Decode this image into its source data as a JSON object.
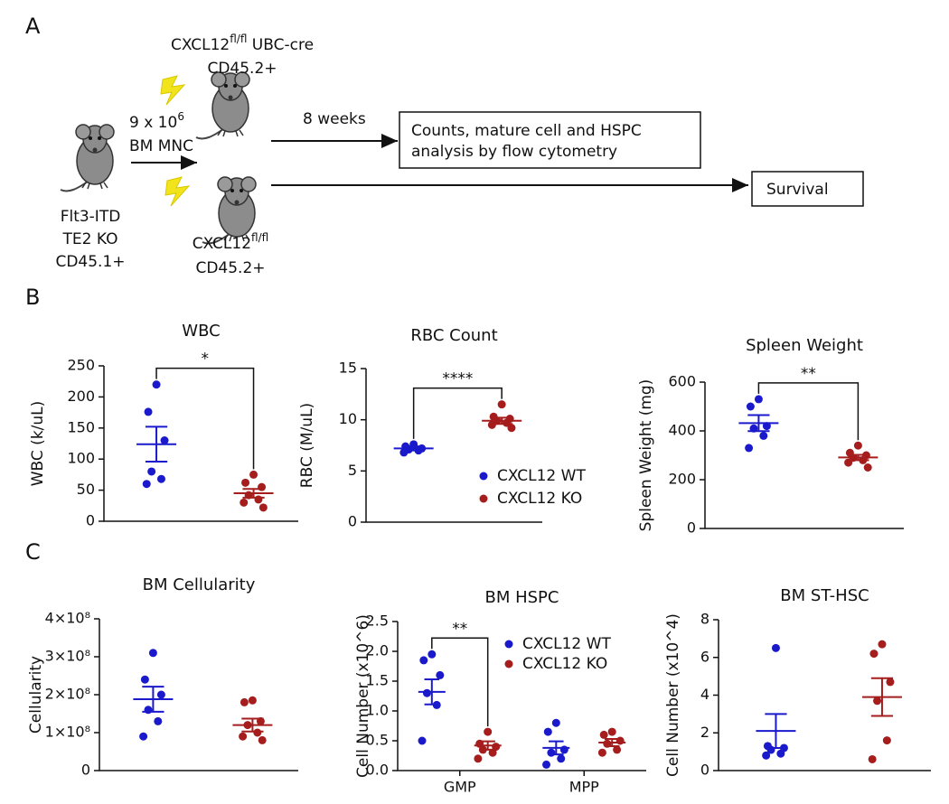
{
  "panel_labels": [
    "A",
    "B",
    "C"
  ],
  "diagram": {
    "donor": [
      "Flt3-ITD",
      "TE2 KO",
      "CD45.1+"
    ],
    "dose": {
      "base": "9 x 10",
      "sup": "6"
    },
    "dose_unit": "BM MNC",
    "recipient_cre": {
      "base": "CXCL12",
      "sup": "fl/fl",
      "rest": " UBC-cre",
      "line2": "CD45.2+"
    },
    "recipient_ctrl": {
      "base": "CXCL12",
      "sup": "fl/fl",
      "line2": "CD45.2+"
    },
    "interval": "8 weeks",
    "analysis": [
      "Counts, mature cell and HSPC",
      "analysis by flow cytometry"
    ],
    "outcome": "Survival"
  },
  "chart_data": [
    {
      "type": "dot",
      "title": "WBC",
      "y_label": "WBC (k/uL)",
      "ylim": [
        0,
        250
      ],
      "yticks": [
        0,
        50,
        100,
        150,
        200,
        250
      ],
      "series": [
        {
          "color": "#1a1acc",
          "values": [
            220,
            176,
            130,
            80,
            68,
            60
          ],
          "means": 124,
          "sems": 28
        },
        {
          "color": "#a51d1d",
          "values": [
            75,
            62,
            55,
            42,
            35,
            30,
            22
          ],
          "means": 45,
          "sems": 7
        }
      ],
      "significance": {
        "label": "*",
        "series": [
          0,
          1
        ]
      }
    },
    {
      "type": "dot",
      "title": "RBC Count",
      "y_label": "RBC (M/uL)",
      "ylim": [
        0,
        15
      ],
      "yticks": [
        0,
        5,
        10,
        15
      ],
      "series": [
        {
          "name": "CXCL12 WT",
          "color": "#1a1acc",
          "values": [
            7.6,
            7.4,
            7.2,
            7.1,
            7.0,
            6.8
          ],
          "means": 7.2,
          "sems": 0.2
        },
        {
          "name": "CXCL12 KO",
          "color": "#a51d1d",
          "values": [
            11.5,
            10.3,
            10.1,
            9.9,
            9.7,
            9.5,
            9.2
          ],
          "means": 9.9,
          "sems": 0.3
        }
      ],
      "significance": {
        "label": "****",
        "series": [
          0,
          1
        ]
      }
    },
    {
      "type": "dot",
      "title": "Spleen Weight",
      "y_label": "Spleen Weight (mg)",
      "ylim": [
        0,
        600
      ],
      "yticks": [
        0,
        200,
        400,
        600
      ],
      "series": [
        {
          "color": "#1a1acc",
          "values": [
            530,
            500,
            420,
            410,
            380,
            330
          ],
          "means": 432,
          "sems": 33
        },
        {
          "color": "#a51d1d",
          "values": [
            340,
            310,
            300,
            290,
            280,
            270,
            250
          ],
          "means": 291,
          "sems": 11
        }
      ],
      "significance": {
        "label": "**",
        "series": [
          0,
          1
        ]
      }
    },
    {
      "type": "dot",
      "title": "BM Cellularity",
      "y_label": "Cellularity",
      "ylim": [
        0,
        400000000
      ],
      "yticks": [
        0,
        {
          "value": 100000000,
          "label": "1×10⁸"
        },
        {
          "value": 200000000,
          "label": "2×10⁸"
        },
        {
          "value": 300000000,
          "label": "3×10⁸"
        },
        {
          "value": 400000000,
          "label": "4×10⁸"
        }
      ],
      "series": [
        {
          "color": "#1a1acc",
          "values": [
            310000000,
            240000000,
            200000000,
            160000000,
            130000000,
            90000000
          ],
          "means": 188000000,
          "sems": 33000000
        },
        {
          "color": "#a51d1d",
          "values": [
            185000000,
            180000000,
            130000000,
            120000000,
            100000000,
            90000000,
            80000000
          ],
          "means": 120000000,
          "sems": 17000000
        }
      ]
    },
    {
      "type": "dot",
      "title": "BM HSPC",
      "y_label": "Cell Number (x10^6)",
      "ylim": [
        0,
        2.5
      ],
      "yticks": [
        {
          "value": 0,
          "label": "0.0"
        },
        0.5,
        {
          "value": 1,
          "label": "1.0"
        },
        1.5,
        {
          "value": 2,
          "label": "2.0"
        },
        2.5
      ],
      "categories": [
        "GMP",
        "MPP"
      ],
      "series": [
        {
          "name": "CXCL12 WT",
          "color": "#1a1acc",
          "values": [
            [
              1.95,
              1.85,
              1.6,
              1.3,
              1.1,
              0.5
            ],
            [
              0.8,
              0.65,
              0.35,
              0.3,
              0.2,
              0.1
            ]
          ],
          "means": [
            1.32,
            0.38
          ],
          "sems": [
            0.21,
            0.11
          ]
        },
        {
          "name": "CXCL12 KO",
          "color": "#a51d1d",
          "values": [
            [
              0.65,
              0.45,
              0.4,
              0.35,
              0.3,
              0.2
            ],
            [
              0.65,
              0.6,
              0.5,
              0.45,
              0.35,
              0.3
            ]
          ],
          "means": [
            0.42,
            0.47
          ],
          "sems": [
            0.07,
            0.06
          ]
        }
      ],
      "significance": {
        "label": "**",
        "series": [
          0,
          1
        ],
        "category": 0
      }
    },
    {
      "type": "dot",
      "title": "BM ST-HSC",
      "y_label": "Cell Number (x10^4)",
      "ylim": [
        0,
        8
      ],
      "yticks": [
        0,
        2,
        4,
        6,
        8
      ],
      "series": [
        {
          "color": "#1a1acc",
          "values": [
            6.5,
            1.3,
            1.2,
            1.1,
            0.9,
            0.8
          ],
          "means": 2.1,
          "sems": 0.9
        },
        {
          "color": "#a51d1d",
          "values": [
            6.7,
            6.2,
            4.7,
            3.7,
            1.6,
            0.6
          ],
          "means": 3.9,
          "sems": 1.0
        }
      ]
    }
  ]
}
